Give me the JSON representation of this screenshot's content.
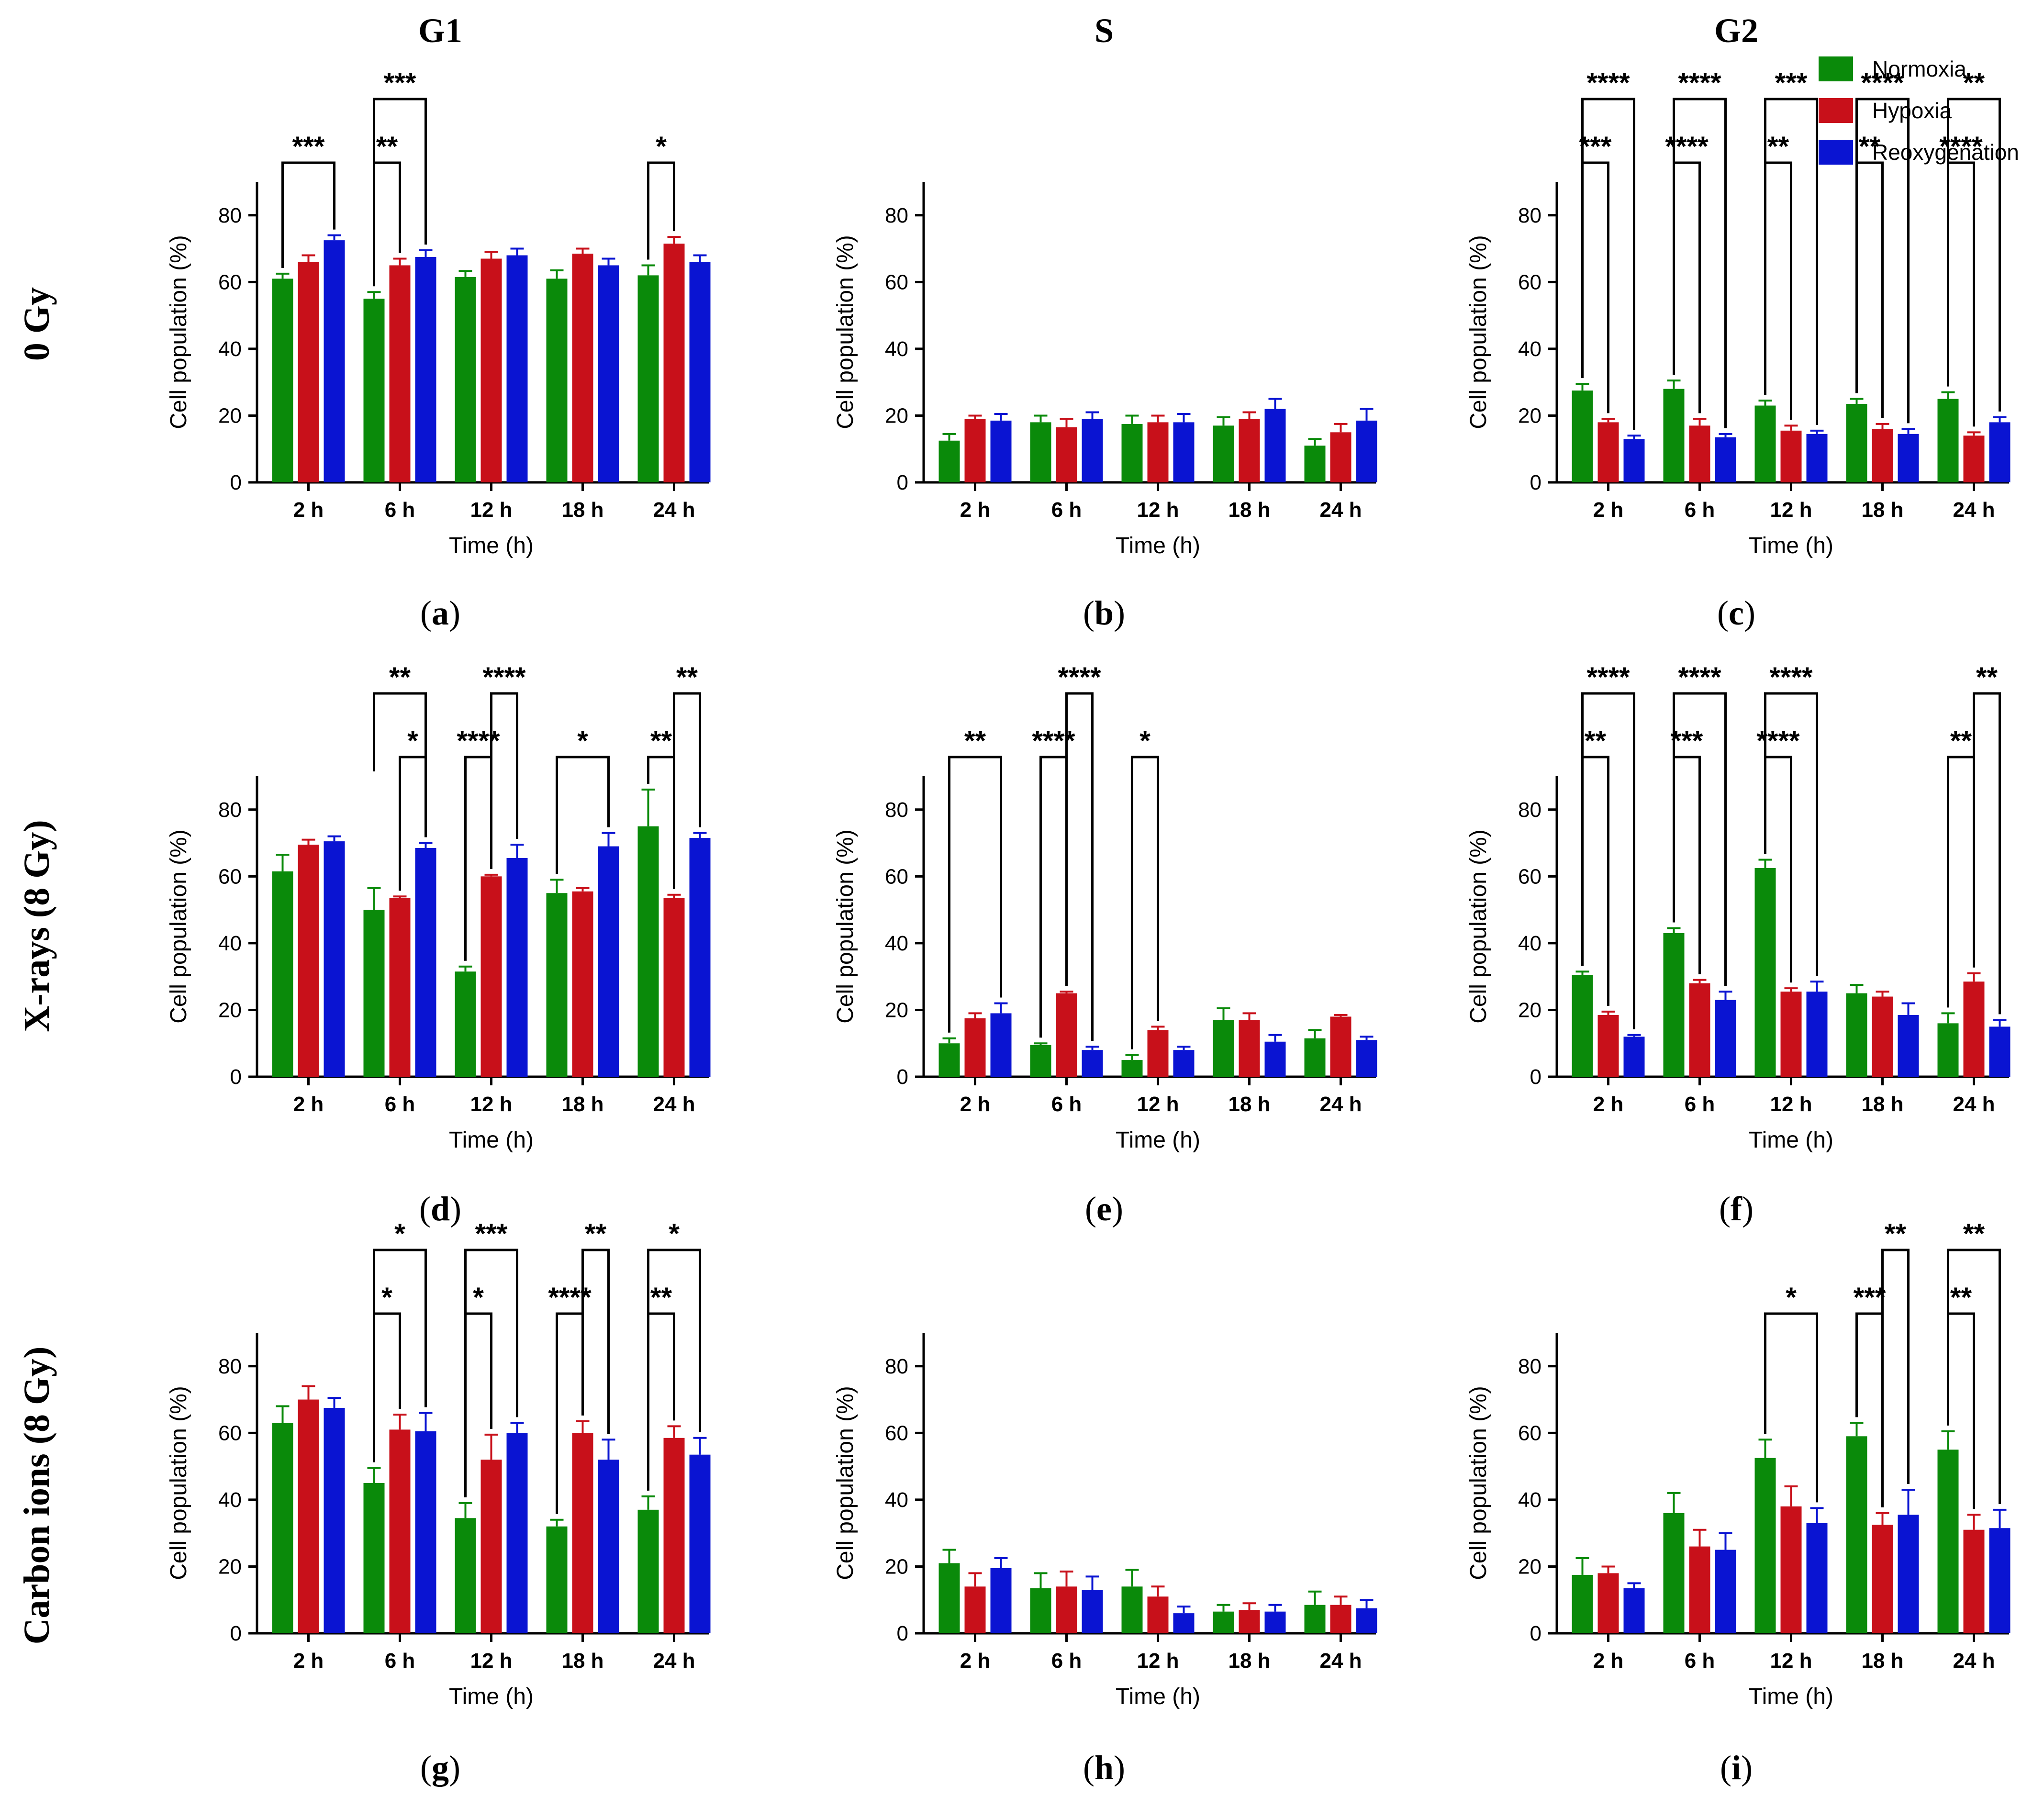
{
  "columns": [
    "G1",
    "S",
    "G2"
  ],
  "rows": [
    "0 Gy",
    "X-rays (8 Gy)",
    "Carbon ions (8 Gy)"
  ],
  "legend": [
    {
      "label": "Normoxia",
      "color": "#0a8a0a"
    },
    {
      "label": "Hypoxia",
      "color": "#c8101a"
    },
    {
      "label": "Reoxygenation",
      "color": "#0a14d2"
    }
  ],
  "chart_data": [
    {
      "panel": "a",
      "type": "bar",
      "ylabel": "Cell population (%)",
      "xlabel": "Time (h)",
      "ylim": [
        0,
        90
      ],
      "yticks": [
        0,
        20,
        40,
        60,
        80
      ],
      "categories": [
        "2 h",
        "6 h",
        "12 h",
        "18 h",
        "24 h"
      ],
      "series": [
        {
          "name": "Normoxia",
          "values": [
            61,
            55,
            61.5,
            61,
            62
          ],
          "errors": [
            1.5,
            2,
            1.8,
            2.5,
            3
          ]
        },
        {
          "name": "Hypoxia",
          "values": [
            66,
            65,
            67,
            68.5,
            71.5
          ],
          "errors": [
            2,
            2,
            2,
            1.5,
            2
          ]
        },
        {
          "name": "Reoxygenation",
          "values": [
            72.5,
            67.5,
            68,
            65,
            66
          ],
          "errors": [
            1.5,
            2,
            2,
            2,
            2
          ]
        }
      ],
      "significance": [
        {
          "group": 0,
          "from": 0,
          "to": 2,
          "level": 1,
          "label": "***"
        },
        {
          "group": 1,
          "from": 0,
          "to": 1,
          "level": 1,
          "label": "**"
        },
        {
          "group": 1,
          "from": 0,
          "to": 2,
          "level": 2,
          "label": "***"
        },
        {
          "group": 4,
          "from": 0,
          "to": 1,
          "level": 1,
          "label": "*"
        }
      ]
    },
    {
      "panel": "b",
      "type": "bar",
      "ylabel": "Cell population (%)",
      "xlabel": "Time (h)",
      "ylim": [
        0,
        90
      ],
      "yticks": [
        0,
        20,
        40,
        60,
        80
      ],
      "categories": [
        "2 h",
        "6 h",
        "12 h",
        "18 h",
        "24 h"
      ],
      "series": [
        {
          "name": "Normoxia",
          "values": [
            12.5,
            18,
            17.5,
            17,
            11
          ],
          "errors": [
            2,
            2,
            2.5,
            2.5,
            2
          ]
        },
        {
          "name": "Hypoxia",
          "values": [
            19,
            16.5,
            18,
            19,
            15
          ],
          "errors": [
            1,
            2.5,
            2,
            2,
            2.5
          ]
        },
        {
          "name": "Reoxygenation",
          "values": [
            18.5,
            19,
            18,
            22,
            18.5
          ],
          "errors": [
            2,
            2,
            2.5,
            3,
            3.5
          ]
        }
      ],
      "significance": []
    },
    {
      "panel": "c",
      "type": "bar",
      "ylabel": "Cell population (%)",
      "xlabel": "Time (h)",
      "ylim": [
        0,
        90
      ],
      "yticks": [
        0,
        20,
        40,
        60,
        80
      ],
      "categories": [
        "2 h",
        "6 h",
        "12 h",
        "18 h",
        "24 h"
      ],
      "series": [
        {
          "name": "Normoxia",
          "values": [
            27.5,
            28,
            23,
            23.5,
            25
          ],
          "errors": [
            2,
            2.5,
            1.5,
            1.5,
            2
          ]
        },
        {
          "name": "Hypoxia",
          "values": [
            18,
            17,
            15.5,
            16,
            14
          ],
          "errors": [
            1,
            2,
            1.5,
            1.5,
            1
          ]
        },
        {
          "name": "Reoxygenation",
          "values": [
            13,
            13.5,
            14.5,
            14.5,
            18
          ],
          "errors": [
            1,
            1,
            1,
            1.5,
            1.5
          ]
        }
      ],
      "significance": [
        {
          "group": 0,
          "from": 0,
          "to": 1,
          "level": 1,
          "label": "***"
        },
        {
          "group": 0,
          "from": 0,
          "to": 2,
          "level": 2,
          "label": "****"
        },
        {
          "group": 1,
          "from": 0,
          "to": 1,
          "level": 1,
          "label": "****"
        },
        {
          "group": 1,
          "from": 0,
          "to": 2,
          "level": 2,
          "label": "****"
        },
        {
          "group": 2,
          "from": 0,
          "to": 1,
          "level": 1,
          "label": "**"
        },
        {
          "group": 2,
          "from": 0,
          "to": 2,
          "level": 2,
          "label": "***"
        },
        {
          "group": 3,
          "from": 0,
          "to": 1,
          "level": 1,
          "label": "**"
        },
        {
          "group": 3,
          "from": 0,
          "to": 2,
          "level": 2,
          "label": "****"
        },
        {
          "group": 4,
          "from": 0,
          "to": 1,
          "level": 1,
          "label": "****"
        },
        {
          "group": 4,
          "from": 0,
          "to": 2,
          "level": 2,
          "label": "**"
        }
      ]
    },
    {
      "panel": "d",
      "type": "bar",
      "ylabel": "Cell population (%)",
      "xlabel": "Time (h)",
      "ylim": [
        0,
        90
      ],
      "yticks": [
        0,
        20,
        40,
        60,
        80
      ],
      "categories": [
        "2 h",
        "6 h",
        "12 h",
        "18 h",
        "24 h"
      ],
      "series": [
        {
          "name": "Normoxia",
          "values": [
            61.5,
            50,
            31.5,
            55,
            75
          ],
          "errors": [
            5,
            6.5,
            1.5,
            4,
            11
          ]
        },
        {
          "name": "Hypoxia",
          "values": [
            69.5,
            53.5,
            60,
            55.5,
            53.5
          ],
          "errors": [
            1.5,
            0.5,
            0.5,
            1,
            1
          ]
        },
        {
          "name": "Reoxygenation",
          "values": [
            70.5,
            68.5,
            65.5,
            69,
            71.5
          ],
          "errors": [
            1.5,
            1.5,
            4,
            4,
            1.5
          ]
        }
      ],
      "significance": [
        {
          "group": 1,
          "from": 1,
          "to": 2,
          "level": 1,
          "label": "*"
        },
        {
          "group": 1,
          "from": 0,
          "to": 2,
          "level": 2,
          "label": "**"
        },
        {
          "group": 2,
          "from": 0,
          "to": 1,
          "level": 1,
          "label": "****"
        },
        {
          "group": 2,
          "from": 1,
          "to": 2,
          "level": 2,
          "label": "****"
        },
        {
          "group": 3,
          "from": 0,
          "to": 2,
          "level": 1,
          "label": "*"
        },
        {
          "group": 4,
          "from": 0,
          "to": 1,
          "level": 1,
          "label": "**"
        },
        {
          "group": 4,
          "from": 1,
          "to": 2,
          "level": 2,
          "label": "**"
        }
      ]
    },
    {
      "panel": "e",
      "type": "bar",
      "ylabel": "Cell population (%)",
      "xlabel": "Time (h)",
      "ylim": [
        0,
        90
      ],
      "yticks": [
        0,
        20,
        40,
        60,
        80
      ],
      "categories": [
        "2 h",
        "6 h",
        "12 h",
        "18 h",
        "24 h"
      ],
      "series": [
        {
          "name": "Normoxia",
          "values": [
            10,
            9.5,
            5,
            17,
            11.5
          ],
          "errors": [
            1.5,
            0.5,
            1.5,
            3.5,
            2.5
          ]
        },
        {
          "name": "Hypoxia",
          "values": [
            17.5,
            25,
            14,
            17,
            18
          ],
          "errors": [
            1.5,
            0.5,
            1,
            2,
            0.5
          ]
        },
        {
          "name": "Reoxygenation",
          "values": [
            19,
            8,
            8,
            10.5,
            11
          ],
          "errors": [
            3,
            1,
            1,
            2,
            1
          ]
        }
      ],
      "significance": [
        {
          "group": 0,
          "from": 0,
          "to": 2,
          "level": 1,
          "label": "**"
        },
        {
          "group": 1,
          "from": 0,
          "to": 1,
          "level": 1,
          "label": "****"
        },
        {
          "group": 1,
          "from": 1,
          "to": 2,
          "level": 2,
          "label": "****"
        },
        {
          "group": 2,
          "from": 0,
          "to": 1,
          "level": 1,
          "label": "*"
        }
      ]
    },
    {
      "panel": "f",
      "type": "bar",
      "ylabel": "Cell population (%)",
      "xlabel": "Time (h)",
      "ylim": [
        0,
        90
      ],
      "yticks": [
        0,
        20,
        40,
        60,
        80
      ],
      "categories": [
        "2 h",
        "6 h",
        "12 h",
        "18 h",
        "24 h"
      ],
      "series": [
        {
          "name": "Normoxia",
          "values": [
            30.5,
            43,
            62.5,
            25,
            16
          ],
          "errors": [
            1,
            1.5,
            2.5,
            2.5,
            3
          ]
        },
        {
          "name": "Hypoxia",
          "values": [
            18.5,
            28,
            25.5,
            24,
            28.5
          ],
          "errors": [
            1,
            1,
            1,
            1.5,
            2.5
          ]
        },
        {
          "name": "Reoxygenation",
          "values": [
            12,
            23,
            25.5,
            18.5,
            15
          ],
          "errors": [
            0.5,
            2.5,
            3,
            3.5,
            2
          ]
        }
      ],
      "significance": [
        {
          "group": 0,
          "from": 0,
          "to": 1,
          "level": 1,
          "label": "**"
        },
        {
          "group": 0,
          "from": 0,
          "to": 2,
          "level": 2,
          "label": "****"
        },
        {
          "group": 1,
          "from": 0,
          "to": 1,
          "level": 1,
          "label": "***"
        },
        {
          "group": 1,
          "from": 0,
          "to": 2,
          "level": 2,
          "label": "****"
        },
        {
          "group": 2,
          "from": 0,
          "to": 1,
          "level": 1,
          "label": "****"
        },
        {
          "group": 2,
          "from": 0,
          "to": 2,
          "level": 2,
          "label": "****"
        },
        {
          "group": 4,
          "from": 0,
          "to": 1,
          "level": 1,
          "label": "**"
        },
        {
          "group": 4,
          "from": 1,
          "to": 2,
          "level": 2,
          "label": "**"
        }
      ]
    },
    {
      "panel": "g",
      "type": "bar",
      "ylabel": "Cell population (%)",
      "xlabel": "Time (h)",
      "ylim": [
        0,
        90
      ],
      "yticks": [
        0,
        20,
        40,
        60,
        80
      ],
      "categories": [
        "2 h",
        "6 h",
        "12 h",
        "18 h",
        "24 h"
      ],
      "series": [
        {
          "name": "Normoxia",
          "values": [
            63,
            45,
            34.5,
            32,
            37
          ],
          "errors": [
            5,
            4.5,
            4.5,
            2,
            4
          ]
        },
        {
          "name": "Hypoxia",
          "values": [
            70,
            61,
            52,
            60,
            58.5
          ],
          "errors": [
            4,
            4.5,
            7.5,
            3.5,
            3.5
          ]
        },
        {
          "name": "Reoxygenation",
          "values": [
            67.5,
            60.5,
            60,
            52,
            53.5
          ],
          "errors": [
            3,
            5.5,
            3,
            6,
            5
          ]
        }
      ],
      "significance": [
        {
          "group": 1,
          "from": 0,
          "to": 1,
          "level": 1,
          "label": "*"
        },
        {
          "group": 1,
          "from": 0,
          "to": 2,
          "level": 2,
          "label": "*"
        },
        {
          "group": 2,
          "from": 0,
          "to": 1,
          "level": 1,
          "label": "*"
        },
        {
          "group": 2,
          "from": 0,
          "to": 2,
          "level": 2,
          "label": "***"
        },
        {
          "group": 3,
          "from": 0,
          "to": 1,
          "level": 1,
          "label": "****"
        },
        {
          "group": 3,
          "from": 1,
          "to": 2,
          "level": 2,
          "label": "**"
        },
        {
          "group": 4,
          "from": 0,
          "to": 1,
          "level": 1,
          "label": "**"
        },
        {
          "group": 4,
          "from": 0,
          "to": 2,
          "level": 2,
          "label": "*"
        }
      ]
    },
    {
      "panel": "h",
      "type": "bar",
      "ylabel": "Cell population (%)",
      "xlabel": "Time (h)",
      "ylim": [
        0,
        90
      ],
      "yticks": [
        0,
        20,
        40,
        60,
        80
      ],
      "categories": [
        "2 h",
        "6 h",
        "12 h",
        "18 h",
        "24 h"
      ],
      "series": [
        {
          "name": "Normoxia",
          "values": [
            21,
            13.5,
            14,
            6.5,
            8.5
          ],
          "errors": [
            4,
            4.5,
            5,
            2,
            4
          ]
        },
        {
          "name": "Hypoxia",
          "values": [
            14,
            14,
            11,
            7,
            8.5
          ],
          "errors": [
            4,
            4.5,
            3,
            2,
            2.5
          ]
        },
        {
          "name": "Reoxygenation",
          "values": [
            19.5,
            13,
            6,
            6.5,
            7.5
          ],
          "errors": [
            3,
            4,
            2,
            2,
            2.5
          ]
        }
      ],
      "significance": []
    },
    {
      "panel": "i",
      "type": "bar",
      "ylabel": "Cell population (%)",
      "xlabel": "Time (h)",
      "ylim": [
        0,
        90
      ],
      "yticks": [
        0,
        20,
        40,
        60,
        80
      ],
      "categories": [
        "2 h",
        "6 h",
        "12 h",
        "18 h",
        "24 h"
      ],
      "series": [
        {
          "name": "Normoxia",
          "values": [
            17.5,
            36,
            52.5,
            59,
            55
          ],
          "errors": [
            5,
            6,
            5.5,
            4,
            5.5
          ]
        },
        {
          "name": "Hypoxia",
          "values": [
            18,
            26,
            38,
            32.5,
            31
          ],
          "errors": [
            2,
            5,
            6,
            3.5,
            4.5
          ]
        },
        {
          "name": "Reoxygenation",
          "values": [
            13.5,
            25,
            33,
            35.5,
            31.5
          ],
          "errors": [
            1.5,
            5,
            4.5,
            7.5,
            5.5
          ]
        }
      ],
      "significance": [
        {
          "group": 2,
          "from": 0,
          "to": 2,
          "level": 1,
          "label": "*"
        },
        {
          "group": 3,
          "from": 0,
          "to": 1,
          "level": 1,
          "label": "***"
        },
        {
          "group": 3,
          "from": 1,
          "to": 2,
          "level": 2,
          "label": "**"
        },
        {
          "group": 4,
          "from": 0,
          "to": 1,
          "level": 1,
          "label": "**"
        },
        {
          "group": 4,
          "from": 0,
          "to": 2,
          "level": 2,
          "label": "**"
        }
      ]
    }
  ]
}
